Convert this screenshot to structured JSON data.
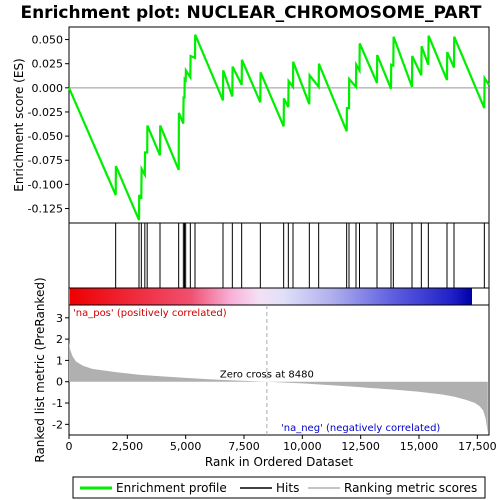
{
  "chart_data": {
    "type": "line",
    "title": "Enrichment plot: NUCLEAR_CHROMOSOME_PART",
    "xlabel": "Rank in Ordered Dataset",
    "ylabel_top": "Enrichment score (ES)",
    "ylabel_bottom": "Ranked list metric (PreRanked)",
    "xlim": [
      0,
      18000
    ],
    "x_ticks": [
      0,
      2500,
      5000,
      7500,
      10000,
      12500,
      15000,
      17500
    ],
    "x_tick_labels": [
      "0",
      "2,500",
      "5,000",
      "7,500",
      "10,000",
      "12,500",
      "15,000",
      "17,500"
    ],
    "es_ylim": [
      -0.14,
      0.063
    ],
    "es_ticks": [
      -0.125,
      -0.1,
      -0.075,
      -0.05,
      -0.025,
      0.0,
      0.025,
      0.05
    ],
    "es_tick_labels": [
      "-0.125",
      "-0.100",
      "-0.075",
      "-0.050",
      "-0.025",
      "0.000",
      "0.025",
      "0.050"
    ],
    "metric_ylim": [
      -2.5,
      3.6
    ],
    "metric_ticks": [
      -2,
      -1,
      0,
      1,
      2,
      3
    ],
    "metric_tick_labels": [
      "-2",
      "-1",
      "0",
      "1",
      "2",
      "3"
    ],
    "zero_cross_rank": 8480,
    "zero_cross_label": "Zero cross at 8480",
    "pos_label": "'na_pos' (positively correlated)",
    "neg_label": "'na_neg' (negatively correlated)",
    "hits": [
      2000,
      3000,
      3100,
      3250,
      3350,
      3900,
      4700,
      4900,
      4950,
      5000,
      5200,
      5400,
      6600,
      7000,
      7400,
      8200,
      9200,
      9400,
      9600,
      10300,
      10700,
      11900,
      12000,
      12300,
      12450,
      13200,
      13800,
      13900,
      14700,
      15100,
      15400,
      16200,
      16500,
      17800
    ],
    "es_profile": {
      "x": [
        0,
        2000,
        2010,
        3000,
        3010,
        3100,
        3110,
        3250,
        3260,
        3350,
        3360,
        3900,
        3910,
        4700,
        4710,
        4900,
        4910,
        4950,
        4960,
        5000,
        5010,
        5200,
        5210,
        5400,
        5410,
        6600,
        6610,
        7000,
        7010,
        7400,
        7410,
        8200,
        8210,
        9200,
        9210,
        9400,
        9410,
        9600,
        9610,
        10300,
        10310,
        10700,
        10710,
        11900,
        11910,
        12000,
        12010,
        12300,
        12310,
        12450,
        12460,
        13200,
        13210,
        13800,
        13810,
        13900,
        13910,
        14700,
        14710,
        15100,
        15110,
        15400,
        15410,
        16200,
        16210,
        16500,
        16510,
        17800,
        17810,
        18000
      ],
      "y": [
        0.0,
        -0.111,
        -0.081,
        -0.137,
        -0.111,
        -0.115,
        -0.084,
        -0.09,
        -0.067,
        -0.067,
        -0.039,
        -0.07,
        -0.039,
        -0.085,
        -0.026,
        -0.037,
        -0.009,
        -0.011,
        0.009,
        0.008,
        0.018,
        0.011,
        0.033,
        0.031,
        0.055,
        -0.013,
        0.018,
        -0.009,
        0.022,
        0.003,
        0.029,
        -0.015,
        0.016,
        -0.04,
        -0.011,
        -0.02,
        0.007,
        0.001,
        0.027,
        -0.017,
        0.013,
        0.001,
        0.025,
        -0.045,
        -0.021,
        -0.021,
        0.009,
        0.001,
        0.024,
        0.018,
        0.046,
        0.005,
        0.034,
        -0.001,
        0.024,
        0.023,
        0.053,
        0.001,
        0.033,
        0.013,
        0.043,
        0.024,
        0.054,
        0.008,
        0.037,
        0.021,
        0.053,
        -0.021,
        0.01,
        0.003
      ]
    },
    "metric_curve": {
      "x": [
        0,
        50,
        150,
        300,
        600,
        1000,
        2000,
        3000,
        4000,
        5000,
        6000,
        7000,
        8480,
        10000,
        11000,
        12000,
        13000,
        14000,
        15000,
        16000,
        16500,
        17000,
        17400,
        17600,
        17750,
        17850,
        17950
      ],
      "y": [
        1.85,
        1.5,
        1.2,
        0.95,
        0.75,
        0.6,
        0.45,
        0.33,
        0.25,
        0.18,
        0.12,
        0.06,
        0.0,
        -0.08,
        -0.15,
        -0.22,
        -0.3,
        -0.38,
        -0.47,
        -0.6,
        -0.7,
        -0.85,
        -1.0,
        -1.15,
        -1.35,
        -1.7,
        -2.4
      ]
    },
    "colors": {
      "es_line": "#00ee00",
      "hit": "#000000",
      "metric_fill": "#b0b0b0",
      "zero_line": "#aaaaaa",
      "pos_text": "#cc0000",
      "neg_text": "#0000cc"
    },
    "legend": {
      "placement": "bottom",
      "items": [
        {
          "label": "Enrichment profile",
          "color": "#00ee00"
        },
        {
          "label": "Hits",
          "color": "#000000"
        },
        {
          "label": "Ranking metric scores",
          "color": "#b0b0b0"
        }
      ]
    }
  }
}
